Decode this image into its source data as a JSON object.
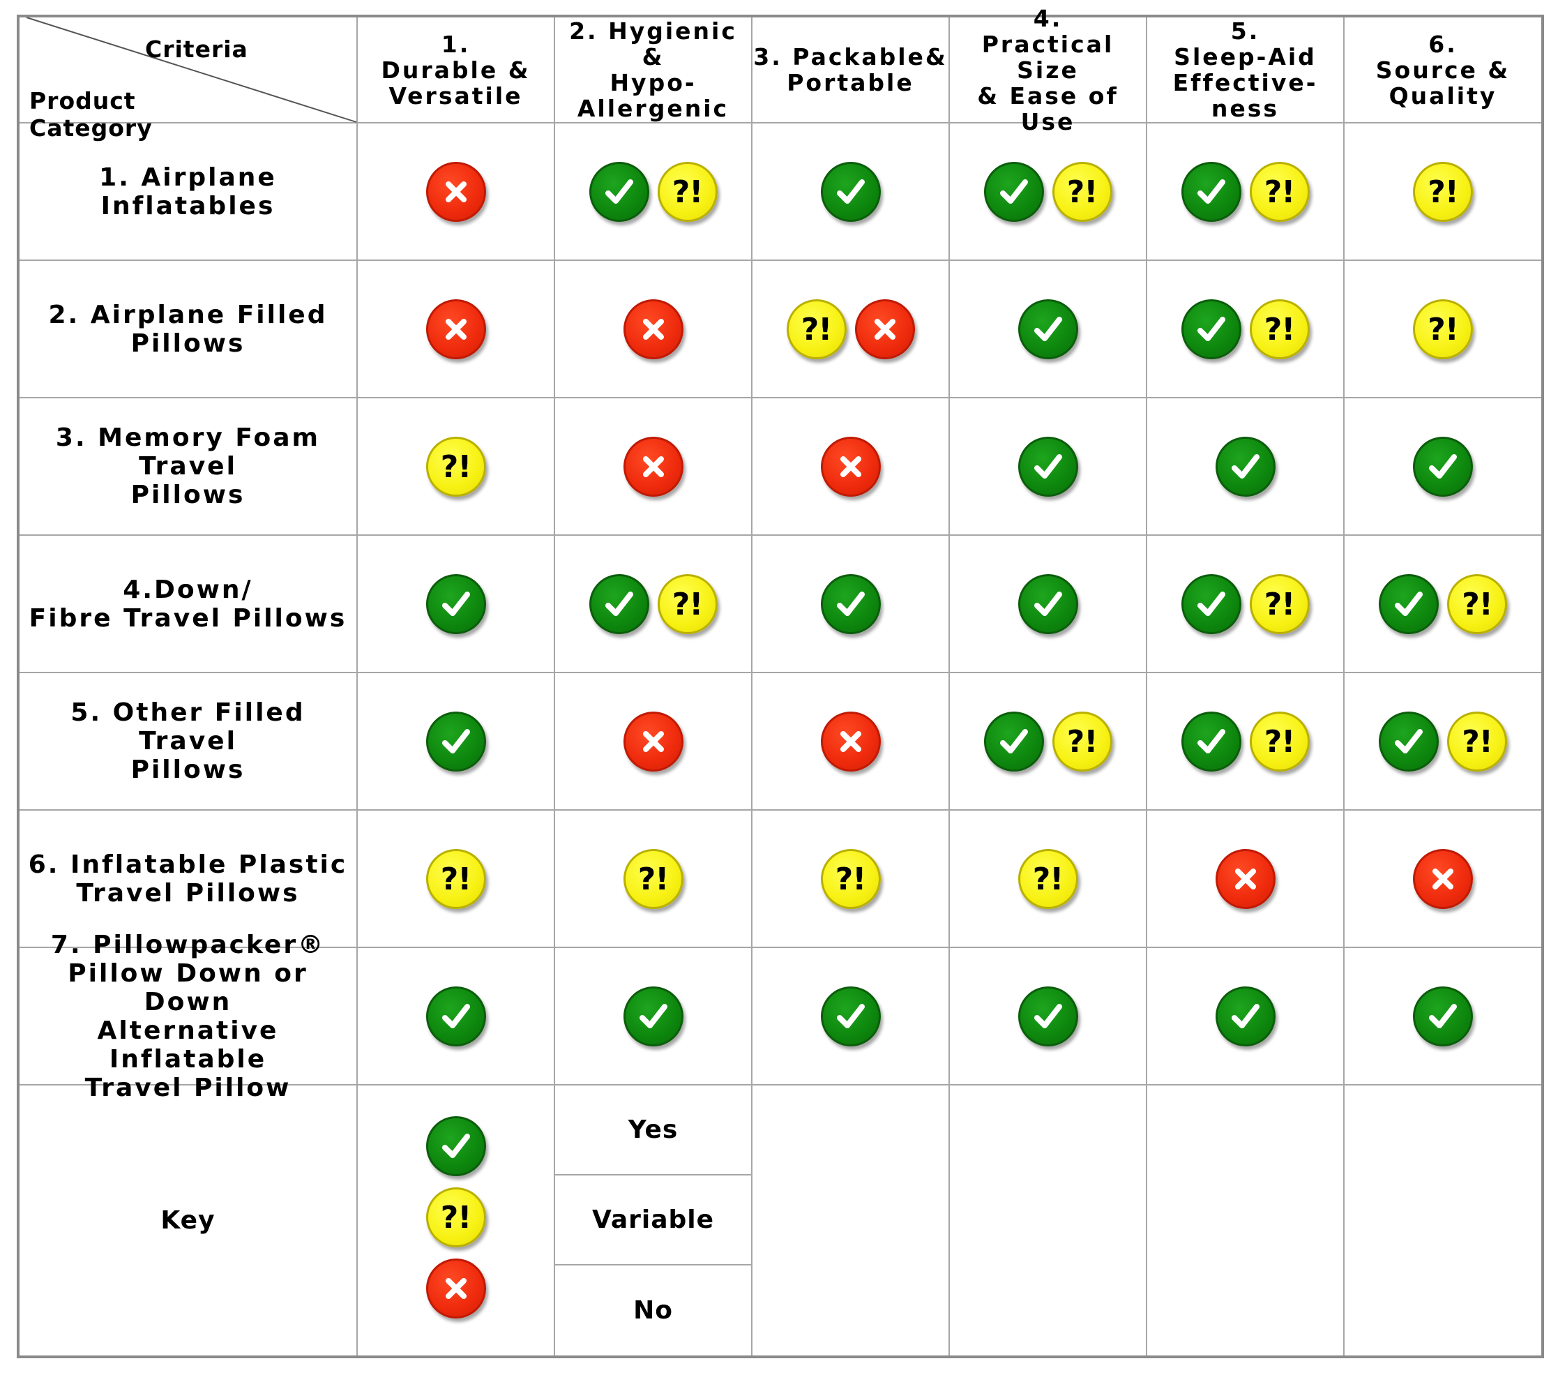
{
  "corner": {
    "criteria": "Criteria",
    "product_line1": "Product",
    "product_line2": "Category"
  },
  "criteria": [
    {
      "lines": [
        "1.",
        "Durable &",
        "Versatile"
      ]
    },
    {
      "lines": [
        "2. Hygienic &",
        "Hypo-",
        "Allergenic"
      ]
    },
    {
      "lines": [
        "3. Packable&",
        "Portable"
      ]
    },
    {
      "lines": [
        "4.",
        "Practical Size",
        "& Ease of Use"
      ]
    },
    {
      "lines": [
        "5.",
        "Sleep-Aid",
        "Effective-ness"
      ]
    },
    {
      "lines": [
        "6.",
        "Source &",
        "Quality"
      ]
    }
  ],
  "products": [
    {
      "lines": [
        "1. Airplane Inflatables"
      ],
      "ratings": [
        [
          "no"
        ],
        [
          "yes",
          "variable"
        ],
        [
          "yes"
        ],
        [
          "yes",
          "variable"
        ],
        [
          "yes",
          "variable"
        ],
        [
          "variable"
        ]
      ]
    },
    {
      "lines": [
        "2. Airplane Filled",
        "Pillows"
      ],
      "ratings": [
        [
          "no"
        ],
        [
          "no"
        ],
        [
          "variable",
          "no"
        ],
        [
          "yes"
        ],
        [
          "yes",
          "variable"
        ],
        [
          "variable"
        ]
      ]
    },
    {
      "lines": [
        "3. Memory Foam Travel",
        "Pillows"
      ],
      "ratings": [
        [
          "variable"
        ],
        [
          "no"
        ],
        [
          "no"
        ],
        [
          "yes"
        ],
        [
          "yes"
        ],
        [
          "yes"
        ]
      ]
    },
    {
      "lines": [
        "4.Down/",
        "Fibre Travel Pillows"
      ],
      "ratings": [
        [
          "yes"
        ],
        [
          "yes",
          "variable"
        ],
        [
          "yes"
        ],
        [
          "yes"
        ],
        [
          "yes",
          "variable"
        ],
        [
          "yes",
          "variable"
        ]
      ]
    },
    {
      "lines": [
        "5. Other Filled Travel",
        "Pillows"
      ],
      "ratings": [
        [
          "yes"
        ],
        [
          "no"
        ],
        [
          "no"
        ],
        [
          "yes",
          "variable"
        ],
        [
          "yes",
          "variable"
        ],
        [
          "yes",
          "variable"
        ]
      ]
    },
    {
      "lines": [
        "6. Inflatable Plastic",
        "Travel Pillows"
      ],
      "ratings": [
        [
          "variable"
        ],
        [
          "variable"
        ],
        [
          "variable"
        ],
        [
          "variable"
        ],
        [
          "no"
        ],
        [
          "no"
        ]
      ]
    },
    {
      "lines": [
        "7. Pillowpacker®",
        "Pillow Down or Down",
        "Alternative Inflatable",
        "Travel Pillow"
      ],
      "ratings": [
        [
          "yes"
        ],
        [
          "yes"
        ],
        [
          "yes"
        ],
        [
          "yes"
        ],
        [
          "yes"
        ],
        [
          "yes"
        ]
      ]
    }
  ],
  "key": {
    "title": "Key",
    "items": [
      {
        "rating": "yes",
        "label": "Yes"
      },
      {
        "rating": "variable",
        "label": "Variable"
      },
      {
        "rating": "no",
        "label": "No"
      }
    ]
  },
  "icons": {
    "yes": {
      "name": "check-icon",
      "color": "#0d860d"
    },
    "variable": {
      "name": "question-exclamation-icon",
      "color": "#f7f112",
      "glyph": "?!"
    },
    "no": {
      "name": "cross-icon",
      "color": "#ee2a0c"
    }
  }
}
